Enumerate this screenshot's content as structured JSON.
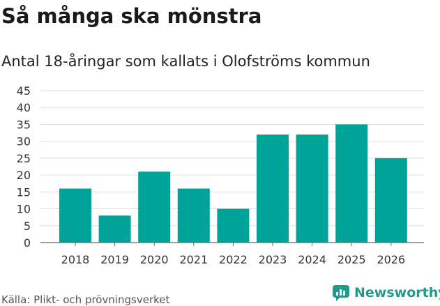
{
  "header": {
    "title": "Så många ska mönstra",
    "subtitle": "Antal 18-åringar som kallats i Olofströms kommun"
  },
  "footer": {
    "source": "Källa: Plikt- och prövningsverket",
    "brand": "Newsworthy"
  },
  "colors": {
    "bar": "#00A398",
    "grid": "#dddddd",
    "brand": "#1f9a8c"
  },
  "chart_data": {
    "type": "bar",
    "title": "Så många ska mönstra",
    "subtitle": "Antal 18-åringar som kallats i Olofströms kommun",
    "categories": [
      "2018",
      "2019",
      "2020",
      "2021",
      "2022",
      "2023",
      "2024",
      "2025",
      "2026"
    ],
    "values": [
      16,
      8,
      21,
      16,
      10,
      32,
      32,
      35,
      25
    ],
    "yticks": [
      0,
      5,
      10,
      15,
      20,
      25,
      30,
      35,
      40,
      45
    ],
    "ylim": [
      0,
      45
    ],
    "xlabel": "",
    "ylabel": "",
    "grid": true
  }
}
